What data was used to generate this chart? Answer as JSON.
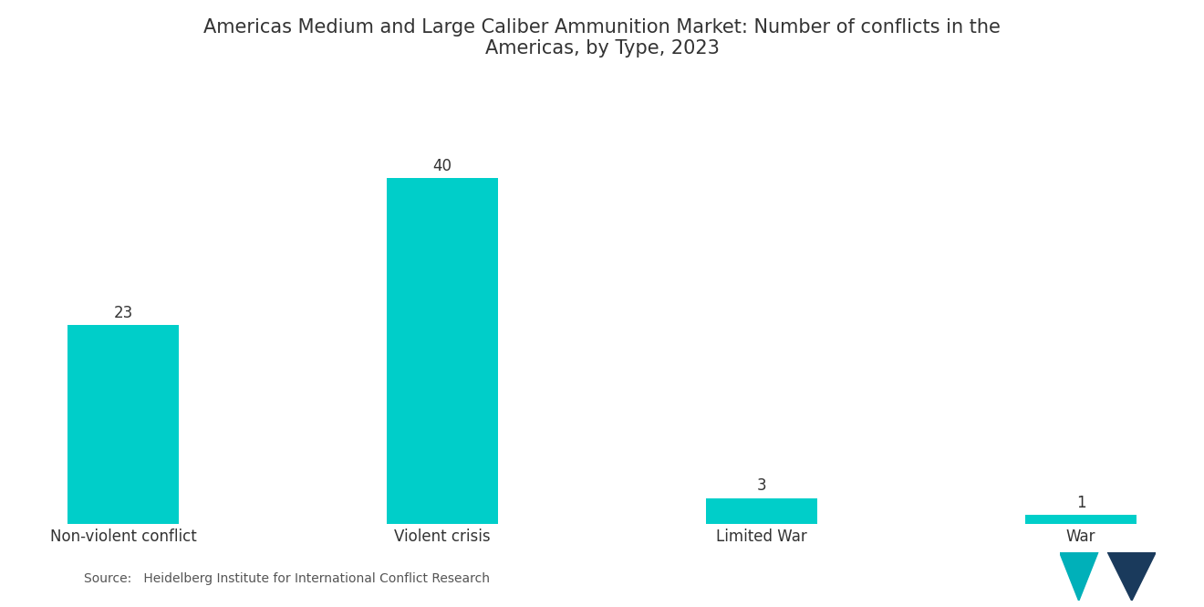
{
  "title": "Americas Medium and Large Caliber Ammunition Market: Number of conflicts in the\nAmericas, by Type, 2023",
  "categories": [
    "Non-violent conflict",
    "Violent crisis",
    "Limited War",
    "War"
  ],
  "values": [
    23,
    40,
    3,
    1
  ],
  "bar_color": "#00CEC9",
  "background_color": "#ffffff",
  "title_fontsize": 15,
  "label_fontsize": 12,
  "value_fontsize": 12,
  "source_text": "Source:   Heidelberg Institute for International Conflict Research",
  "ylim": [
    0,
    48
  ],
  "bar_width": 0.35
}
